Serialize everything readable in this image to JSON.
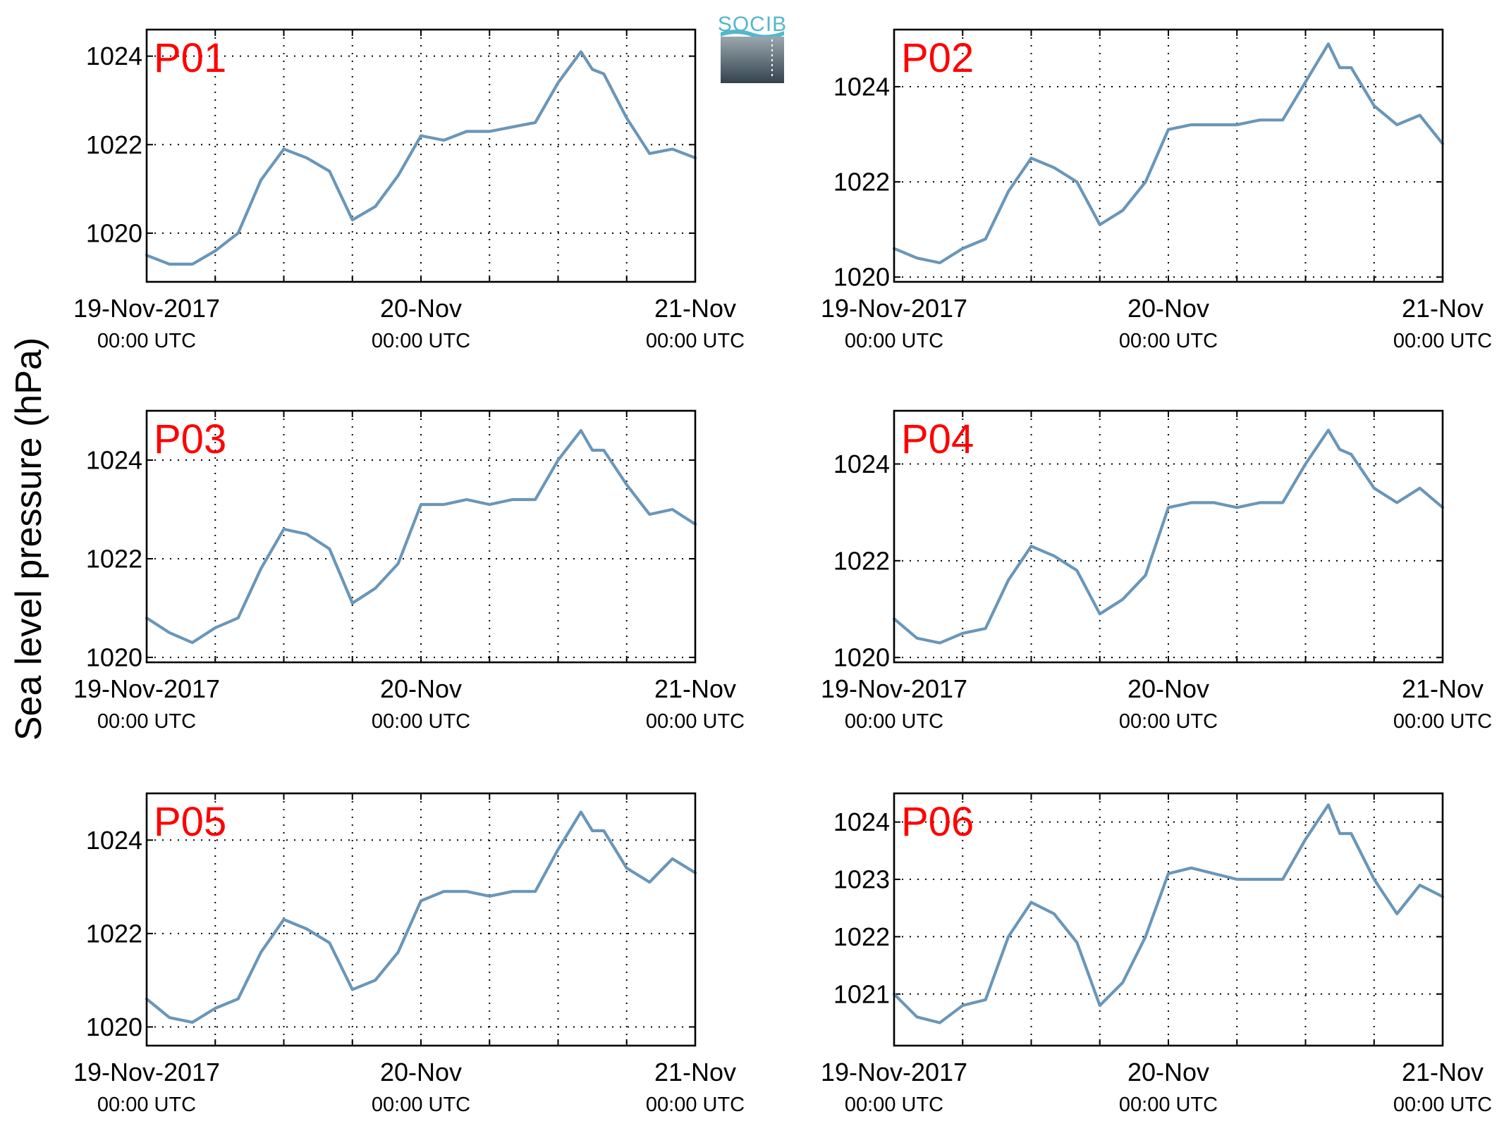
{
  "figure": {
    "ylabel": "Sea level pressure (hPa)",
    "logo_text": "SOCIB",
    "series_color": "#6a96b8",
    "title_color": "#ff0000"
  },
  "chart_data": [
    {
      "type": "line",
      "title": "P01",
      "xlim": [
        "2017-11-19T00:00",
        "2017-11-21T00:00"
      ],
      "ylim": [
        1018.9,
        1024.6
      ],
      "yticks": [
        1020,
        1022,
        1024
      ],
      "xticks": [
        {
          "date": "19-Nov-2017",
          "time": "00:00 UTC"
        },
        {
          "date": "20-Nov",
          "time": "00:00 UTC"
        },
        {
          "date": "21-Nov",
          "time": "00:00 UTC"
        }
      ],
      "x_hours": [
        0,
        2,
        4,
        6,
        8,
        10,
        12,
        14,
        16,
        18,
        20,
        22,
        24,
        26,
        28,
        30,
        32,
        34,
        36,
        38,
        39,
        40,
        42,
        44,
        46,
        48
      ],
      "y": [
        1019.5,
        1019.3,
        1019.3,
        1019.6,
        1020.0,
        1021.2,
        1021.9,
        1021.7,
        1021.4,
        1020.3,
        1020.6,
        1021.3,
        1022.2,
        1022.1,
        1022.3,
        1022.3,
        1022.4,
        1022.5,
        1023.4,
        1024.1,
        1023.7,
        1023.6,
        1022.6,
        1021.8,
        1021.9,
        1021.7
      ]
    },
    {
      "type": "line",
      "title": "P02",
      "xlim": [
        "2017-11-19T00:00",
        "2017-11-21T00:00"
      ],
      "ylim": [
        1019.9,
        1025.2
      ],
      "yticks": [
        1020,
        1022,
        1024
      ],
      "xticks": [
        {
          "date": "19-Nov-2017",
          "time": "00:00 UTC"
        },
        {
          "date": "20-Nov",
          "time": "00:00 UTC"
        },
        {
          "date": "21-Nov",
          "time": "00:00 UTC"
        }
      ],
      "x_hours": [
        0,
        2,
        4,
        6,
        8,
        10,
        12,
        14,
        16,
        18,
        20,
        22,
        24,
        26,
        28,
        30,
        32,
        34,
        36,
        38,
        39,
        40,
        42,
        44,
        46,
        48
      ],
      "y": [
        1020.6,
        1020.4,
        1020.3,
        1020.6,
        1020.8,
        1021.8,
        1022.5,
        1022.3,
        1022.0,
        1021.1,
        1021.4,
        1022.0,
        1023.1,
        1023.2,
        1023.2,
        1023.2,
        1023.3,
        1023.3,
        1024.1,
        1024.9,
        1024.4,
        1024.4,
        1023.6,
        1023.2,
        1023.4,
        1022.8
      ]
    },
    {
      "type": "line",
      "title": "P03",
      "xlim": [
        "2017-11-19T00:00",
        "2017-11-21T00:00"
      ],
      "ylim": [
        1019.9,
        1025.0
      ],
      "yticks": [
        1020,
        1022,
        1024
      ],
      "xticks": [
        {
          "date": "19-Nov-2017",
          "time": "00:00 UTC"
        },
        {
          "date": "20-Nov",
          "time": "00:00 UTC"
        },
        {
          "date": "21-Nov",
          "time": "00:00 UTC"
        }
      ],
      "x_hours": [
        0,
        2,
        4,
        6,
        8,
        10,
        12,
        14,
        16,
        18,
        20,
        22,
        24,
        26,
        28,
        30,
        32,
        34,
        36,
        38,
        39,
        40,
        42,
        44,
        46,
        48
      ],
      "y": [
        1020.8,
        1020.5,
        1020.3,
        1020.6,
        1020.8,
        1021.8,
        1022.6,
        1022.5,
        1022.2,
        1021.1,
        1021.4,
        1021.9,
        1023.1,
        1023.1,
        1023.2,
        1023.1,
        1023.2,
        1023.2,
        1024.0,
        1024.6,
        1024.2,
        1024.2,
        1023.5,
        1022.9,
        1023.0,
        1022.7
      ]
    },
    {
      "type": "line",
      "title": "P04",
      "xlim": [
        "2017-11-19T00:00",
        "2017-11-21T00:00"
      ],
      "ylim": [
        1019.9,
        1025.1
      ],
      "yticks": [
        1020,
        1022,
        1024
      ],
      "xticks": [
        {
          "date": "19-Nov-2017",
          "time": "00:00 UTC"
        },
        {
          "date": "20-Nov",
          "time": "00:00 UTC"
        },
        {
          "date": "21-Nov",
          "time": "00:00 UTC"
        }
      ],
      "x_hours": [
        0,
        2,
        4,
        6,
        8,
        10,
        12,
        14,
        16,
        18,
        20,
        22,
        24,
        26,
        28,
        30,
        32,
        34,
        36,
        38,
        39,
        40,
        42,
        44,
        46,
        48
      ],
      "y": [
        1020.8,
        1020.4,
        1020.3,
        1020.5,
        1020.6,
        1021.6,
        1022.3,
        1022.1,
        1021.8,
        1020.9,
        1021.2,
        1021.7,
        1023.1,
        1023.2,
        1023.2,
        1023.1,
        1023.2,
        1023.2,
        1024.0,
        1024.7,
        1024.3,
        1024.2,
        1023.5,
        1023.2,
        1023.5,
        1023.1
      ]
    },
    {
      "type": "line",
      "title": "P05",
      "xlim": [
        "2017-11-19T00:00",
        "2017-11-21T00:00"
      ],
      "ylim": [
        1019.6,
        1025.0
      ],
      "yticks": [
        1020,
        1022,
        1024
      ],
      "xticks": [
        {
          "date": "19-Nov-2017",
          "time": "00:00 UTC"
        },
        {
          "date": "20-Nov",
          "time": "00:00 UTC"
        },
        {
          "date": "21-Nov",
          "time": "00:00 UTC"
        }
      ],
      "x_hours": [
        0,
        2,
        4,
        6,
        8,
        10,
        12,
        14,
        16,
        18,
        20,
        22,
        24,
        26,
        28,
        30,
        32,
        34,
        36,
        38,
        39,
        40,
        42,
        44,
        46,
        48
      ],
      "y": [
        1020.6,
        1020.2,
        1020.1,
        1020.4,
        1020.6,
        1021.6,
        1022.3,
        1022.1,
        1021.8,
        1020.8,
        1021.0,
        1021.6,
        1022.7,
        1022.9,
        1022.9,
        1022.8,
        1022.9,
        1022.9,
        1023.8,
        1024.6,
        1024.2,
        1024.2,
        1023.4,
        1023.1,
        1023.6,
        1023.3
      ]
    },
    {
      "type": "line",
      "title": "P06",
      "xlim": [
        "2017-11-19T00:00",
        "2017-11-21T00:00"
      ],
      "ylim": [
        1020.1,
        1024.5
      ],
      "yticks": [
        1021,
        1022,
        1023,
        1024
      ],
      "xticks": [
        {
          "date": "19-Nov-2017",
          "time": "00:00 UTC"
        },
        {
          "date": "20-Nov",
          "time": "00:00 UTC"
        },
        {
          "date": "21-Nov",
          "time": "00:00 UTC"
        }
      ],
      "x_hours": [
        0,
        2,
        4,
        6,
        8,
        10,
        12,
        14,
        16,
        18,
        20,
        22,
        24,
        26,
        28,
        30,
        32,
        34,
        36,
        38,
        39,
        40,
        42,
        44,
        46,
        48
      ],
      "y": [
        1021.0,
        1020.6,
        1020.5,
        1020.8,
        1020.9,
        1022.0,
        1022.6,
        1022.4,
        1021.9,
        1020.8,
        1021.2,
        1022.0,
        1023.1,
        1023.2,
        1023.1,
        1023.0,
        1023.0,
        1023.0,
        1023.7,
        1024.3,
        1023.8,
        1023.8,
        1023.0,
        1022.4,
        1022.9,
        1022.7
      ]
    }
  ]
}
